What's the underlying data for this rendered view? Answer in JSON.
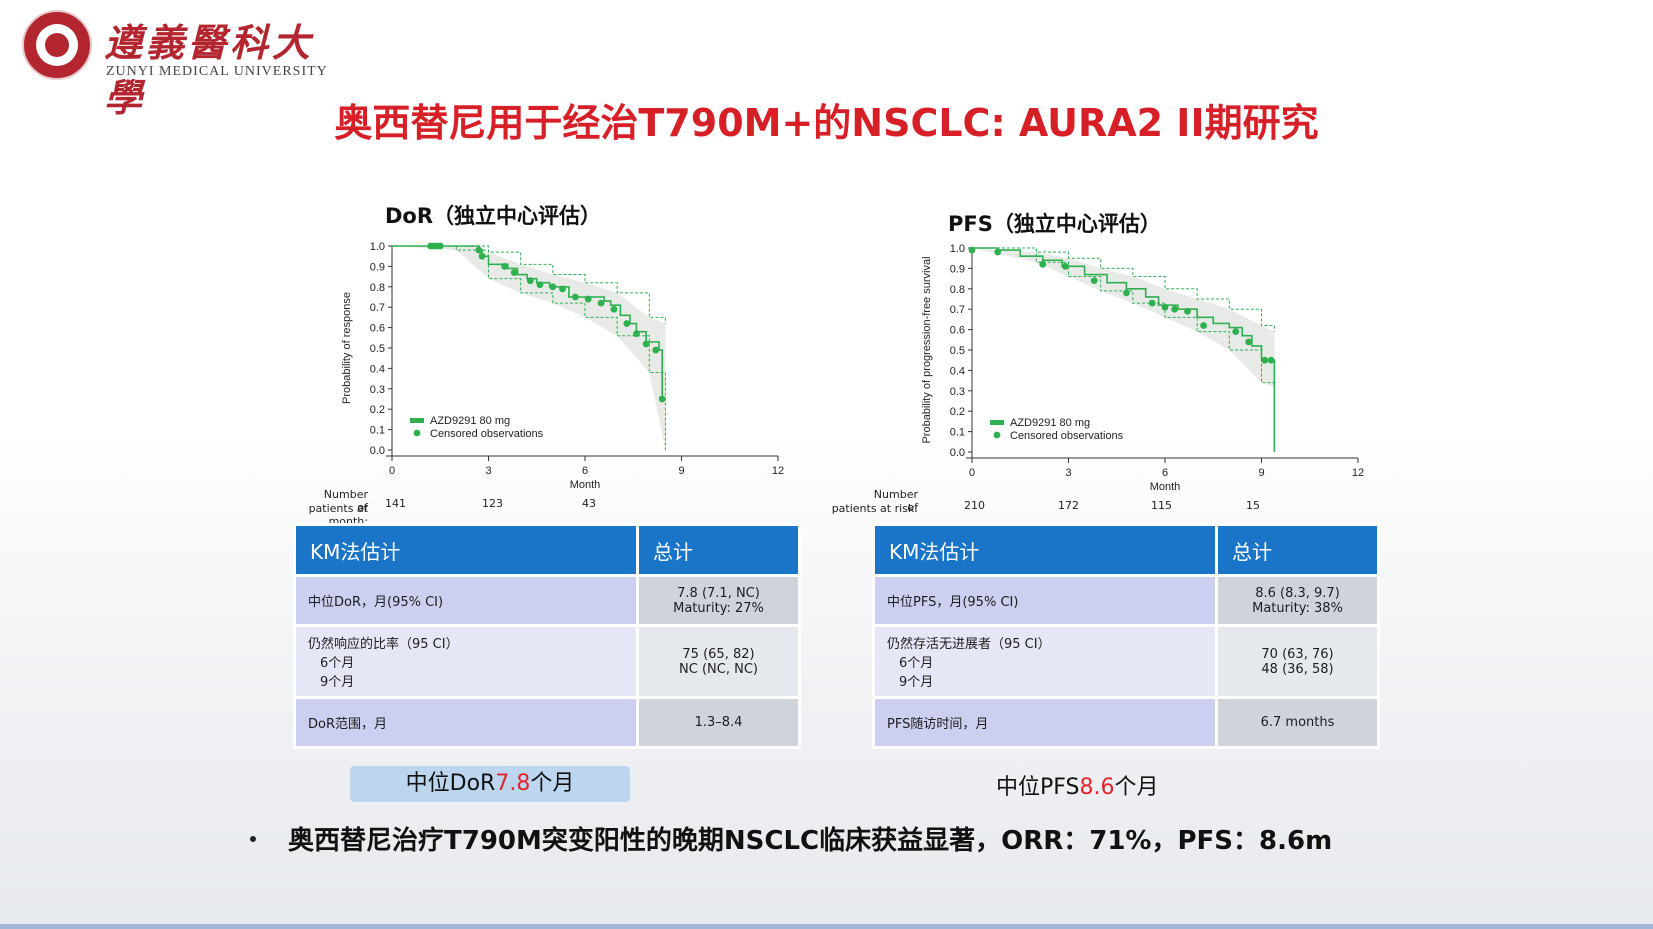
{
  "logo": {
    "name_cn": "遵義醫科大學",
    "name_en": "ZUNYI MEDICAL UNIVERSITY"
  },
  "title": "奥西替尼用于经治T790M+的NSCLC: AURA2 II期研究",
  "left": {
    "heading": "DoR（独立中心评估）",
    "chart_data": {
      "type": "line",
      "title": "",
      "xlabel": "Month",
      "ylabel": "Probability of response",
      "xlim": [
        0,
        12
      ],
      "ylim": [
        0,
        1.0
      ],
      "x_ticks": [
        "0",
        "3",
        "6",
        "9",
        "12"
      ],
      "y_ticks": [
        "0.0",
        "0.1",
        "0.2",
        "0.3",
        "0.4",
        "0.5",
        "0.6",
        "0.7",
        "0.8",
        "0.9",
        "1.0"
      ],
      "legend": [
        "AZD9291 80 mg",
        "Censored observations"
      ],
      "series": [
        {
          "name": "AZD9291 80 mg",
          "x": [
            0,
            1.5,
            2.7,
            2.8,
            3.0,
            3.6,
            3.9,
            4.2,
            4.5,
            4.9,
            5.5,
            6.6,
            6.8,
            7.1,
            7.4,
            7.6,
            7.9,
            8.3,
            8.4,
            8.4
          ],
          "y": [
            1.0,
            1.0,
            0.98,
            0.95,
            0.91,
            0.89,
            0.86,
            0.84,
            0.82,
            0.8,
            0.75,
            0.73,
            0.71,
            0.66,
            0.62,
            0.58,
            0.53,
            0.49,
            0.49,
            0.25
          ]
        }
      ],
      "ci_upper_x": [
        0,
        2.5,
        3.0,
        4.0,
        5.0,
        6.0,
        7.0,
        8.0,
        8.5
      ],
      "ci_upper_y": [
        1.0,
        1.0,
        0.97,
        0.91,
        0.86,
        0.82,
        0.77,
        0.65,
        0.62
      ],
      "ci_lower_x": [
        0,
        2.0,
        3.0,
        4.0,
        5.0,
        6.0,
        7.0,
        8.0,
        8.5
      ],
      "ci_lower_y": [
        1.0,
        0.98,
        0.84,
        0.77,
        0.72,
        0.65,
        0.56,
        0.38,
        0.0
      ],
      "censored_x": [
        1.2,
        1.3,
        1.4,
        1.5,
        2.7,
        2.8,
        3.5,
        3.8,
        4.3,
        4.6,
        5.0,
        5.3,
        5.7,
        6.1,
        6.5,
        6.9,
        7.3,
        7.6,
        7.9,
        8.2,
        8.4
      ],
      "censored_y": [
        1.0,
        1.0,
        1.0,
        1.0,
        0.98,
        0.95,
        0.9,
        0.87,
        0.83,
        0.81,
        0.8,
        0.79,
        0.75,
        0.74,
        0.72,
        0.69,
        0.62,
        0.57,
        0.52,
        0.49,
        0.25
      ]
    },
    "risk": {
      "label1": "Number of",
      "label2": "patients at month:",
      "values": [
        "141",
        "123",
        "43"
      ]
    },
    "table": {
      "h1": "KM法估计",
      "h2": "总计",
      "r1_label": "中位DoR，月(95% CI)",
      "r1_val1": "7.8 (7.1, NC)",
      "r1_val2": "Maturity: 27%",
      "r2_label": "仍然响应的比率（95 CI）",
      "r2_sub1": "6个月",
      "r2_sub2": "9个月",
      "r2_val1": "75 (65, 82)",
      "r2_val2": "NC (NC, NC)",
      "r3_label": "DoR范围，月",
      "r3_val": "1.3–8.4"
    },
    "summary": {
      "prefix": "中位DoR",
      "value": "7.8",
      "suffix": "个月"
    }
  },
  "right": {
    "heading": "PFS（独立中心评估）",
    "chart_data": {
      "type": "line",
      "title": "",
      "xlabel": "Month",
      "ylabel": "Probability of progression-free survival",
      "xlim": [
        0,
        12
      ],
      "ylim": [
        0,
        1.0
      ],
      "x_ticks": [
        "0",
        "3",
        "6",
        "9",
        "12"
      ],
      "y_ticks": [
        "0.0",
        "0.1",
        "0.2",
        "0.3",
        "0.4",
        "0.5",
        "0.6",
        "0.7",
        "0.8",
        "0.9",
        "1.0"
      ],
      "legend": [
        "AZD9291 80 mg",
        "Censored observations"
      ],
      "series": [
        {
          "name": "AZD9291 80 mg",
          "x": [
            0,
            0.8,
            1.5,
            2.2,
            2.8,
            3.5,
            4.2,
            4.8,
            5.4,
            5.8,
            6.4,
            7.0,
            7.5,
            8.0,
            8.4,
            8.7,
            9.0,
            9.3,
            9.4
          ],
          "y": [
            1.0,
            0.99,
            0.96,
            0.94,
            0.91,
            0.87,
            0.83,
            0.8,
            0.76,
            0.72,
            0.7,
            0.66,
            0.63,
            0.61,
            0.57,
            0.52,
            0.45,
            0.45,
            0.0
          ]
        }
      ],
      "ci_upper_x": [
        0,
        2.0,
        3.0,
        4.0,
        5.0,
        6.0,
        7.0,
        8.0,
        9.0,
        9.4
      ],
      "ci_upper_y": [
        1.0,
        0.98,
        0.95,
        0.9,
        0.86,
        0.8,
        0.75,
        0.7,
        0.62,
        0.59
      ],
      "ci_lower_x": [
        0,
        2.0,
        3.0,
        4.0,
        5.0,
        6.0,
        7.0,
        8.0,
        9.0,
        9.4
      ],
      "ci_lower_y": [
        1.0,
        0.93,
        0.86,
        0.79,
        0.73,
        0.66,
        0.59,
        0.5,
        0.34,
        0.32
      ],
      "censored_x": [
        0,
        0.8,
        2.2,
        2.9,
        3.8,
        4.8,
        5.6,
        6.0,
        6.3,
        6.7,
        7.2,
        8.2,
        8.6,
        9.1,
        9.3
      ],
      "censored_y": [
        0.99,
        0.98,
        0.92,
        0.91,
        0.84,
        0.78,
        0.73,
        0.71,
        0.7,
        0.69,
        0.62,
        0.59,
        0.54,
        0.45,
        0.45
      ]
    },
    "risk": {
      "label1": "Number of",
      "label2": "patients at risk:",
      "values": [
        "210",
        "172",
        "115",
        "15"
      ]
    },
    "table": {
      "h1": "KM法估计",
      "h2": "总计",
      "r1_label": "中位PFS，月(95% CI)",
      "r1_val1": "8.6 (8.3, 9.7)",
      "r1_val2": "Maturity: 38%",
      "r2_label": "仍然存活无进展者（95 CI）",
      "r2_sub1": "6个月",
      "r2_sub2": "9个月",
      "r2_val1": "70 (63, 76)",
      "r2_val2": "48 (36, 58)",
      "r3_label": "PFS随访时间，月",
      "r3_val": "6.7 months"
    },
    "summary": {
      "prefix": "中位PFS",
      "value": "8.6",
      "suffix": "个月"
    }
  },
  "bullet": "奥西替尼治疗T790M突变阳性的晚期NSCLC临床获益显著，ORR：71%，PFS：8.6m",
  "colors": {
    "title_red": "#d61f26",
    "curve_green": "#2eb04f",
    "table_header": "#1a75c9",
    "logo_red": "#b3262f"
  }
}
